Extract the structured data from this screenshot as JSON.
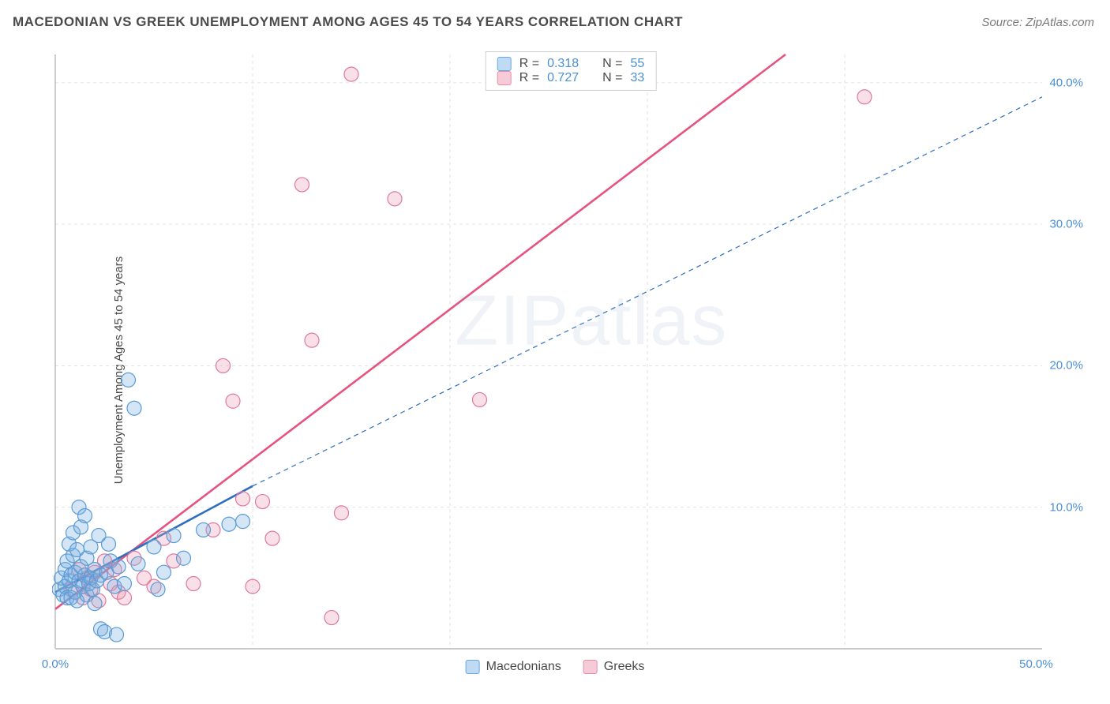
{
  "header": {
    "title": "MACEDONIAN VS GREEK UNEMPLOYMENT AMONG AGES 45 TO 54 YEARS CORRELATION CHART",
    "source": "Source: ZipAtlas.com"
  },
  "ylabel": "Unemployment Among Ages 45 to 54 years",
  "watermark": "ZIPatlas",
  "chart": {
    "type": "scatter",
    "xlim": [
      0,
      50
    ],
    "ylim": [
      0,
      42
    ],
    "xticks": [
      {
        "v": 0,
        "label": "0.0%"
      },
      {
        "v": 50,
        "label": "50.0%"
      }
    ],
    "xgrid": [
      0,
      10,
      20,
      30,
      40,
      50
    ],
    "yticks": [
      {
        "v": 10,
        "label": "10.0%"
      },
      {
        "v": 20,
        "label": "20.0%"
      },
      {
        "v": 30,
        "label": "30.0%"
      },
      {
        "v": 40,
        "label": "40.0%"
      }
    ],
    "axis_color": "#b8b8b8",
    "grid_color": "#e3e3e3",
    "axis_label_color": "#4a8fd6",
    "marker_radius": 9,
    "marker_stroke_width": 1.2,
    "series": {
      "macedonians": {
        "label": "Macedonians",
        "fill": "rgba(120,175,225,0.32)",
        "stroke": "#5a9bd5",
        "swatch_fill": "#bfdaf2",
        "swatch_stroke": "#6aa7db",
        "R": "0.318",
        "N": "55",
        "trend": {
          "x1": 0,
          "y1": 4.0,
          "x2": 10,
          "y2": 11.5,
          "dashed_ext": {
            "x2": 50,
            "y2": 39.0
          }
        },
        "trend_color": "#2e6fbf",
        "trend_width": 2.6,
        "points": [
          [
            0.2,
            4.2
          ],
          [
            0.3,
            5.0
          ],
          [
            0.4,
            3.8
          ],
          [
            0.5,
            4.4
          ],
          [
            0.5,
            5.6
          ],
          [
            0.6,
            3.6
          ],
          [
            0.6,
            6.2
          ],
          [
            0.7,
            4.8
          ],
          [
            0.7,
            7.4
          ],
          [
            0.8,
            3.6
          ],
          [
            0.8,
            5.2
          ],
          [
            0.9,
            6.6
          ],
          [
            0.9,
            8.2
          ],
          [
            1.0,
            4.0
          ],
          [
            1.0,
            5.4
          ],
          [
            1.1,
            3.4
          ],
          [
            1.1,
            7.0
          ],
          [
            1.2,
            4.8
          ],
          [
            1.2,
            10.0
          ],
          [
            1.3,
            5.8
          ],
          [
            1.3,
            8.6
          ],
          [
            1.4,
            4.4
          ],
          [
            1.5,
            5.2
          ],
          [
            1.5,
            9.4
          ],
          [
            1.6,
            3.8
          ],
          [
            1.6,
            6.4
          ],
          [
            1.7,
            4.6
          ],
          [
            1.8,
            5.0
          ],
          [
            1.8,
            7.2
          ],
          [
            1.9,
            4.2
          ],
          [
            2.0,
            5.6
          ],
          [
            2.0,
            3.2
          ],
          [
            2.1,
            4.8
          ],
          [
            2.2,
            8.0
          ],
          [
            2.3,
            5.2
          ],
          [
            2.3,
            1.4
          ],
          [
            2.5,
            1.2
          ],
          [
            2.6,
            5.4
          ],
          [
            2.7,
            7.4
          ],
          [
            2.8,
            6.2
          ],
          [
            3.0,
            4.4
          ],
          [
            3.1,
            1.0
          ],
          [
            3.2,
            5.8
          ],
          [
            3.5,
            4.6
          ],
          [
            3.7,
            19.0
          ],
          [
            4.0,
            17.0
          ],
          [
            4.2,
            6.0
          ],
          [
            5.0,
            7.2
          ],
          [
            5.2,
            4.2
          ],
          [
            5.5,
            5.4
          ],
          [
            6.0,
            8.0
          ],
          [
            6.5,
            6.4
          ],
          [
            7.5,
            8.4
          ],
          [
            8.8,
            8.8
          ],
          [
            9.5,
            9.0
          ]
        ]
      },
      "greeks": {
        "label": "Greeks",
        "fill": "rgba(235,150,175,0.30)",
        "stroke": "#e07a9a",
        "swatch_fill": "#f6cbd8",
        "swatch_stroke": "#e88ba8",
        "R": "0.727",
        "N": "33",
        "trend": {
          "x1": 0,
          "y1": 2.8,
          "x2": 37,
          "y2": 42.0
        },
        "trend_color": "#e6537e",
        "trend_width": 2.6,
        "points": [
          [
            0.8,
            4.2
          ],
          [
            1.2,
            5.6
          ],
          [
            1.4,
            3.6
          ],
          [
            1.6,
            5.0
          ],
          [
            1.8,
            4.2
          ],
          [
            2.0,
            5.4
          ],
          [
            2.2,
            3.4
          ],
          [
            2.5,
            6.2
          ],
          [
            2.8,
            4.6
          ],
          [
            3.0,
            5.6
          ],
          [
            3.2,
            4.0
          ],
          [
            3.5,
            3.6
          ],
          [
            4.0,
            6.4
          ],
          [
            4.5,
            5.0
          ],
          [
            5.0,
            4.4
          ],
          [
            5.5,
            7.8
          ],
          [
            6.0,
            6.2
          ],
          [
            7.0,
            4.6
          ],
          [
            8.0,
            8.4
          ],
          [
            8.5,
            20.0
          ],
          [
            9.0,
            17.5
          ],
          [
            9.5,
            10.6
          ],
          [
            10.0,
            4.4
          ],
          [
            10.5,
            10.4
          ],
          [
            11.0,
            7.8
          ],
          [
            12.5,
            32.8
          ],
          [
            13.0,
            21.8
          ],
          [
            14.0,
            2.2
          ],
          [
            14.5,
            9.6
          ],
          [
            15.0,
            40.6
          ],
          [
            17.2,
            31.8
          ],
          [
            21.5,
            17.6
          ],
          [
            41.0,
            39.0
          ]
        ]
      }
    }
  },
  "legend": {
    "item1": "Macedonians",
    "item2": "Greeks"
  },
  "stats_labels": {
    "R": "R =",
    "N": "N ="
  }
}
